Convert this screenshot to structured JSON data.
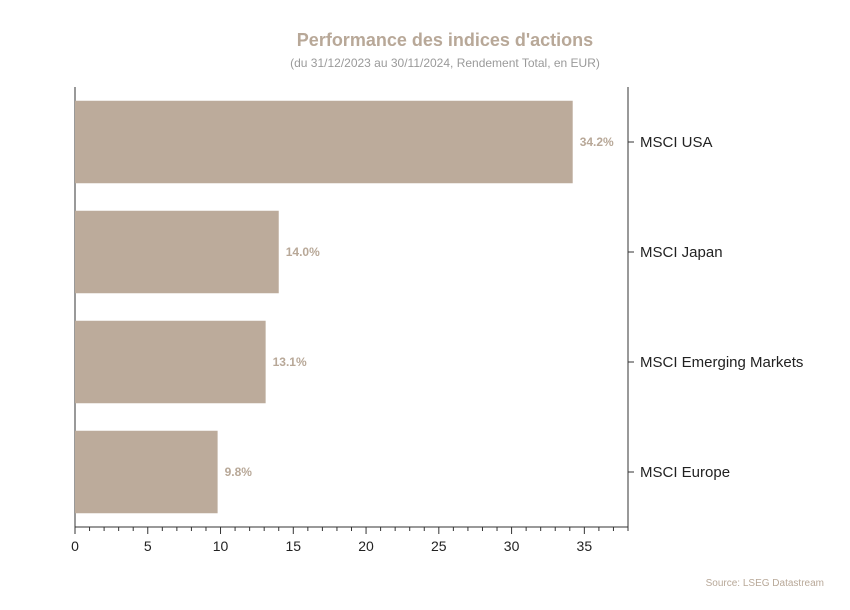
{
  "chart_data": {
    "type": "bar",
    "orientation": "horizontal",
    "title": "Performance des indices d'actions",
    "subtitle": "(du 31/12/2023 au 30/11/2024, Rendement Total, en EUR)",
    "categories": [
      "MSCI USA",
      "MSCI Japan",
      "MSCI Emerging Markets",
      "MSCI Europe"
    ],
    "values": [
      34.2,
      14.0,
      13.1,
      9.8
    ],
    "value_labels": [
      "34.2%",
      "14.0%",
      "13.1%",
      "9.8%"
    ],
    "xlim": [
      0,
      38
    ],
    "xticks": [
      0,
      5,
      10,
      15,
      20,
      25,
      30,
      35
    ],
    "category_axis_side": "right",
    "grid": false,
    "bar_color": "#bcab9b"
  },
  "source": "Source: LSEG Datastream"
}
